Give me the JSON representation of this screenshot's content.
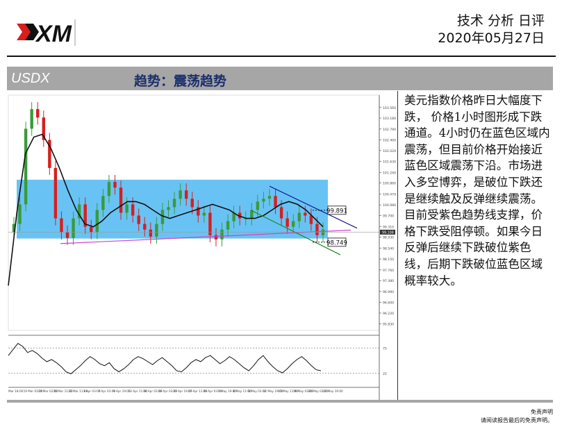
{
  "header": {
    "logo_text": "XM",
    "title_line1": "技术 分析 日评",
    "title_line2": "2020年05月27日"
  },
  "section": {
    "symbol": "USDX",
    "trend": "趋势：震荡趋势"
  },
  "analysis_text": "美元指数价格昨日大幅度下跌， 价格1小时图形成下跌通道。4小时仍在蓝色区域内震荡，但目前价格开始接近蓝色区域震荡下沿。市场进入多空博弈，是破位下跌还是继续触及反弹继续震荡。目前受紫色趋势线支撑，价格下跌受阻停顿。如果今日反弹后继续下跌破位紫色线，后期下跌破位蓝色区域概率较大。",
  "footer": {
    "line1": "免责声明",
    "line2": "请阅读报告最后的免责声明。"
  },
  "colors": {
    "header_bar": "#a6a6a6",
    "trend_text": "#1a2f6b",
    "range_box": "#4db8f2",
    "support_line": "#cc44cc",
    "channel_upper": "#1a1a9a",
    "channel_lower": "#1a8a1a",
    "bull_candle": "#3a9a3a",
    "bear_candle": "#d81e1e"
  },
  "chart_data": {
    "type": "candlestick",
    "symbol": "USDX",
    "ylim": [
      95.6,
      104.0
    ],
    "y_ticks": [
      "103.560",
      "103.180",
      "102.790",
      "102.400",
      "102.020",
      "101.630",
      "101.240",
      "100.860",
      "100.470",
      "100.080",
      "99.700",
      "99.310",
      "98.930",
      "98.540",
      "98.150",
      "97.760",
      "97.380",
      "96.990",
      "96.600",
      "96.220",
      "95.830"
    ],
    "current_price_label": "99.108",
    "level_labels": [
      "99.891",
      "98.749"
    ],
    "range_zone": [
      98.88,
      100.98
    ],
    "x_labels": [
      "Mar 18:00",
      "19 Mar 03:00",
      "24 Mar 02:00",
      "26 Mar 11:00",
      "31 Mar 11:00",
      "3 Apr 03:00",
      "7 Apr 03:00",
      "9 Apr 19:00",
      "13 Apr 11:00",
      "16 Apr 03:00",
      "20 Apr 03:00",
      "22 Apr 19:00",
      "27 Apr 11:00",
      "30 Apr 03:00",
      "5 May 19:00",
      "6 May 11:00",
      "8 May 03:00",
      "12 May 19:00",
      "15 May 11:00",
      "19 May 03:00",
      "20 May 03:00",
      "22 May 19:00"
    ],
    "close": [
      99.4,
      100.1,
      102.8,
      103.5,
      103.2,
      102.4,
      101.4,
      99.6,
      99.1,
      98.9,
      99.6,
      100.1,
      99.3,
      99.1,
      99.9,
      100.4,
      100.9,
      100.7,
      99.8,
      100.1,
      99.7,
      99.4,
      99.2,
      98.95,
      99.4,
      99.9,
      100.0,
      100.3,
      100.6,
      100.3,
      100.0,
      99.7,
      99.8,
      99.0,
      98.85,
      99.2,
      99.5,
      99.8,
      99.6,
      99.6,
      99.9,
      100.2,
      100.3,
      100.4,
      100.0,
      99.6,
      99.3,
      99.5,
      99.8,
      99.7,
      99.4,
      99.0,
      99.2
    ],
    "ma_slow": [
      97.2,
      99.8,
      101.9,
      102.5,
      102.6,
      102.1,
      101.4,
      100.6,
      99.9,
      99.4,
      99.3,
      99.5,
      99.8,
      100.0,
      100.2,
      100.2,
      100.1,
      99.9,
      99.7,
      99.6,
      99.7,
      99.8,
      99.9,
      100.0,
      100.1,
      100.0,
      99.9,
      99.7,
      99.6,
      99.6,
      99.7,
      99.9,
      100.1,
      100.2,
      100.1,
      99.9,
      99.6,
      99.3
    ],
    "oscillator": {
      "levels": [
        "75",
        "25"
      ],
      "values": [
        60,
        72,
        84,
        78,
        66,
        70,
        64,
        55,
        48,
        52,
        46,
        38,
        28,
        24,
        32,
        40,
        50,
        58,
        52,
        44,
        40,
        46,
        34,
        28,
        34,
        42,
        52,
        58,
        54,
        48,
        42,
        50,
        56,
        48,
        40,
        30,
        28,
        36,
        46,
        52,
        48,
        56,
        60,
        52,
        44,
        50,
        58,
        52,
        44,
        36,
        30,
        40,
        52,
        60,
        48,
        38,
        30,
        26,
        34,
        44,
        52,
        58,
        50,
        40,
        32,
        30
      ]
    }
  }
}
